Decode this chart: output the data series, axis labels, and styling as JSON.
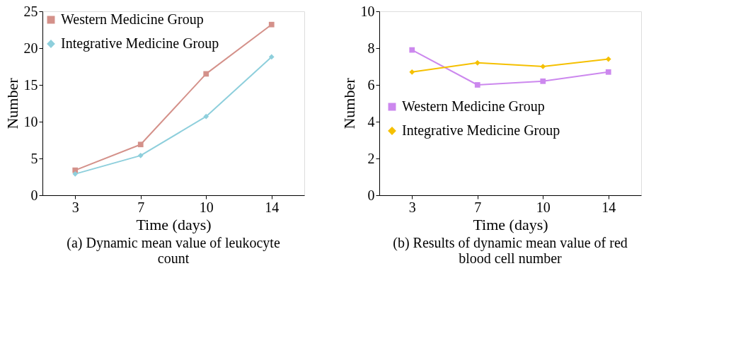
{
  "chart_data": [
    {
      "type": "line",
      "title": "(a) Dynamic mean value of leukocyte count",
      "xlabel": "Time (days)",
      "ylabel": "Number",
      "categories": [
        "3",
        "7",
        "10",
        "14"
      ],
      "ylim": [
        0,
        25
      ],
      "yticks": [
        0,
        5,
        10,
        15,
        20,
        25
      ],
      "grid": false,
      "legend": "top left",
      "series": [
        {
          "name": "Western Medicine Group",
          "color": "#d4918a",
          "marker": "square",
          "values": [
            3.4,
            6.9,
            16.5,
            23.2
          ]
        },
        {
          "name": "Integrative Medicine Group",
          "color": "#8ecfdc",
          "marker": "diamond",
          "values": [
            2.9,
            5.4,
            10.7,
            18.8
          ]
        }
      ]
    },
    {
      "type": "line",
      "title": "(b) Results of dynamic mean value of red blood cell number",
      "xlabel": "Time (days)",
      "ylabel": "Number",
      "categories": [
        "3",
        "7",
        "10",
        "14"
      ],
      "ylim": [
        0,
        10
      ],
      "yticks": [
        0,
        2,
        4,
        6,
        8,
        10
      ],
      "grid": false,
      "legend": "left",
      "series": [
        {
          "name": "Western Medicine Group",
          "color": "#cc88ee",
          "marker": "square",
          "values": [
            7.9,
            6.0,
            6.2,
            6.7
          ]
        },
        {
          "name": "Integrative Medicine Group",
          "color": "#f5c000",
          "marker": "diamond",
          "values": [
            6.7,
            7.2,
            7.0,
            7.4
          ]
        }
      ]
    }
  ]
}
